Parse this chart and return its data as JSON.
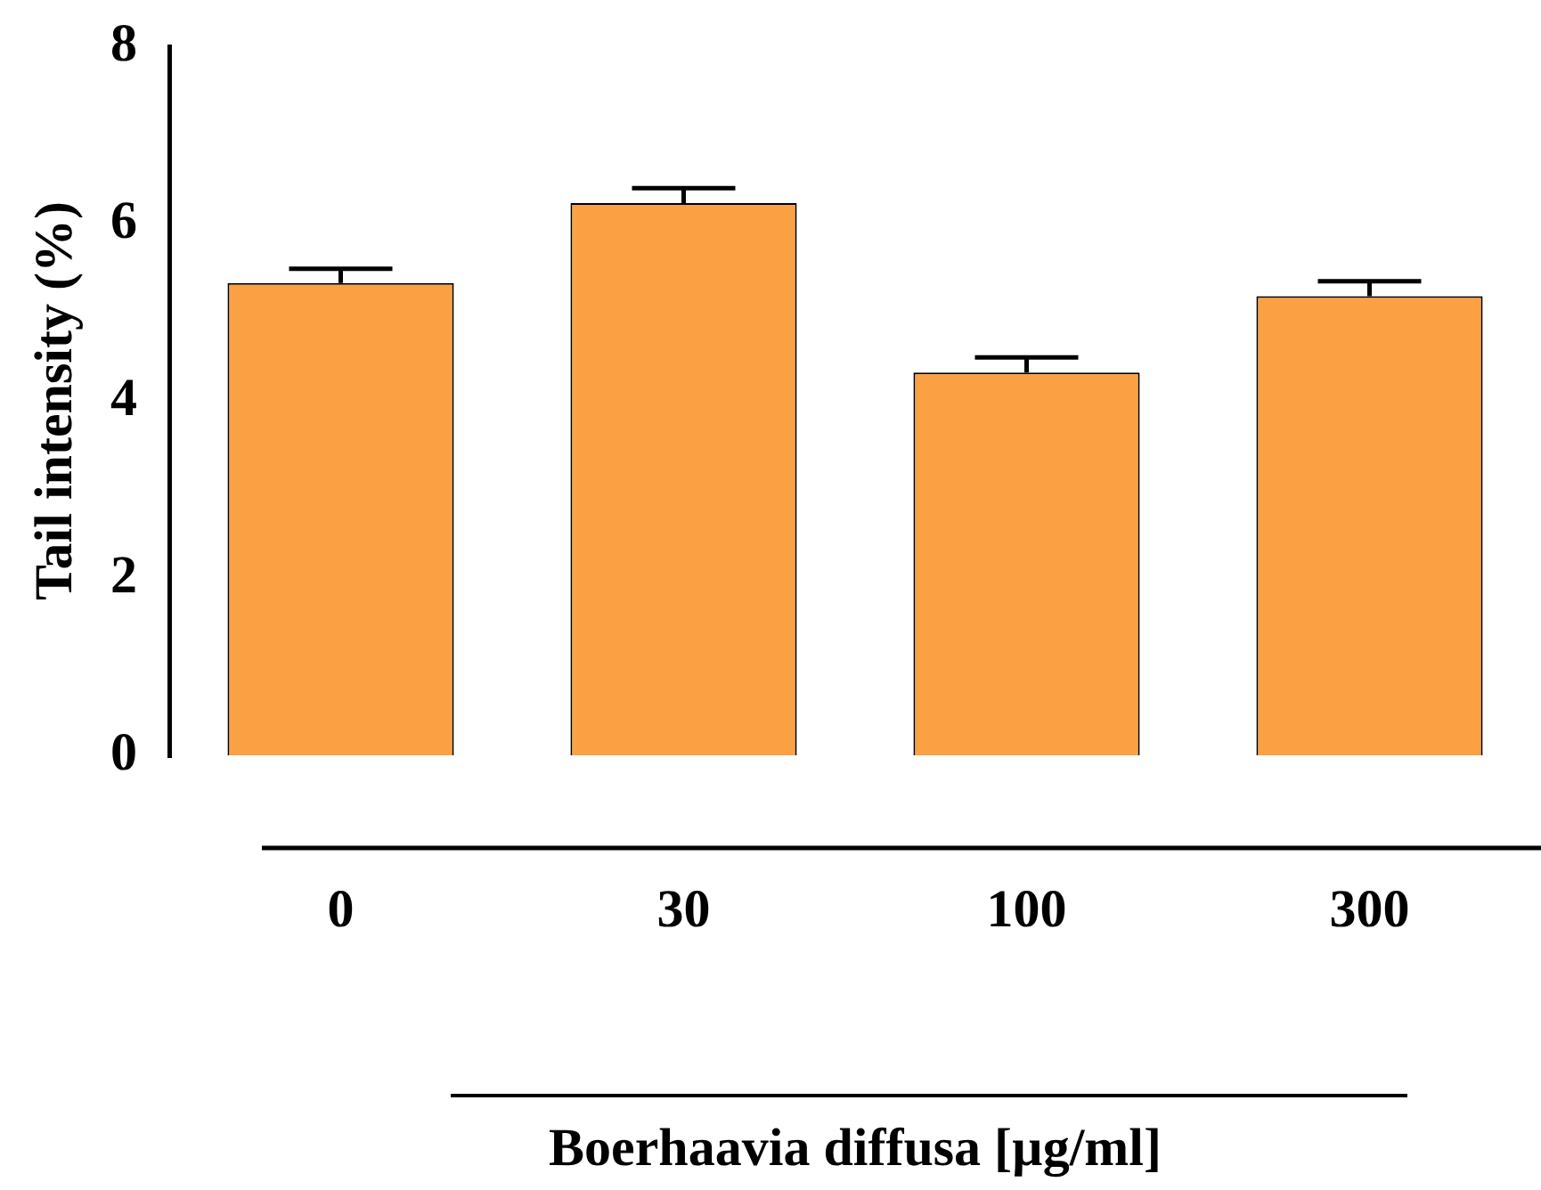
{
  "chart_data": {
    "type": "bar",
    "xlabel": "Boerhaavia diffusa [µg/ml]",
    "ylabel": "Tail intensity (%)",
    "categories": [
      "0",
      "30",
      "100",
      "300"
    ],
    "series": [
      {
        "color": "#fba143",
        "values": [
          5.33,
          6.23,
          4.32,
          5.18
        ],
        "errors": [
          [
            5.33,
            5.49
          ],
          [
            6.23,
            6.4
          ],
          [
            4.32,
            4.49
          ],
          [
            5.18,
            5.35
          ]
        ]
      }
    ],
    "ylim": [
      0,
      8
    ],
    "yticks": [
      0,
      2,
      4,
      6,
      8
    ],
    "grid": false,
    "legend": false
  }
}
